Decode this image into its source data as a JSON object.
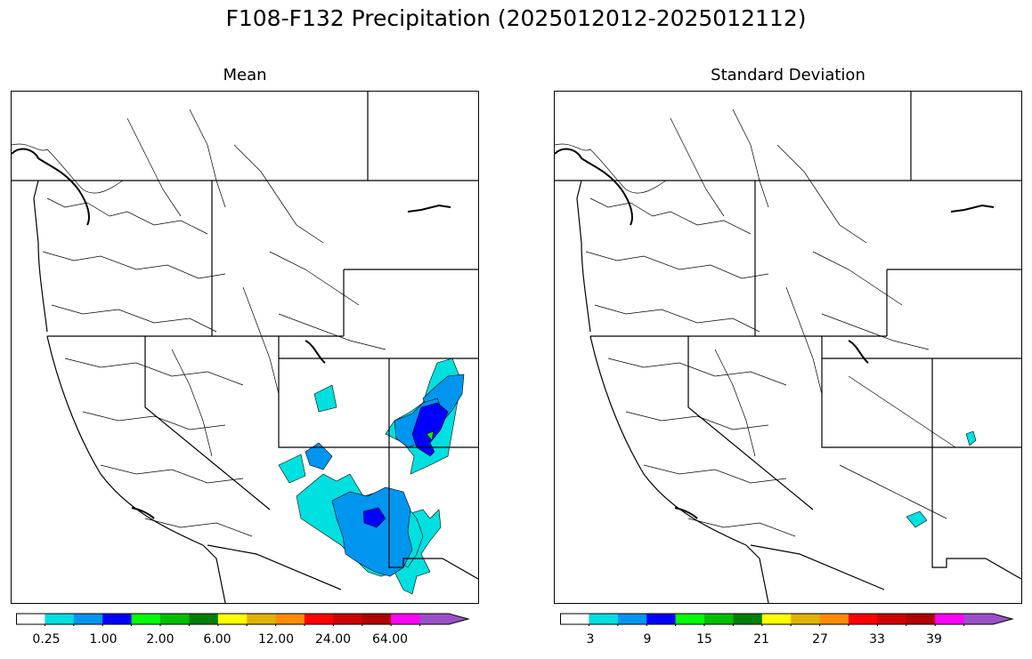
{
  "title": "F108-F132 Precipitation (2025012012-2025012112)",
  "panels": [
    {
      "title": "Mean",
      "colorbar": {
        "colors": [
          "#ffffff",
          "#00e0e0",
          "#0096f0",
          "#0000ff",
          "#00ff00",
          "#00c000",
          "#008000",
          "#ffff00",
          "#e0b400",
          "#ff8c00",
          "#ff0000",
          "#d00000",
          "#b00000",
          "#ff00ff",
          "#9a50c8"
        ],
        "tick_labels": [
          "0.25",
          "1.00",
          "2.00",
          "6.00",
          "12.00",
          "24.00",
          "64.00"
        ]
      }
    },
    {
      "title": "Standard Deviation",
      "colorbar": {
        "colors": [
          "#ffffff",
          "#00e0e0",
          "#0096f0",
          "#0000ff",
          "#00ff00",
          "#00c000",
          "#008000",
          "#ffff00",
          "#e0b400",
          "#ff8c00",
          "#ff0000",
          "#d00000",
          "#b00000",
          "#ff00ff",
          "#9a50c8"
        ],
        "tick_labels": [
          "3",
          "9",
          "15",
          "21",
          "27",
          "33",
          "39"
        ]
      }
    }
  ]
}
